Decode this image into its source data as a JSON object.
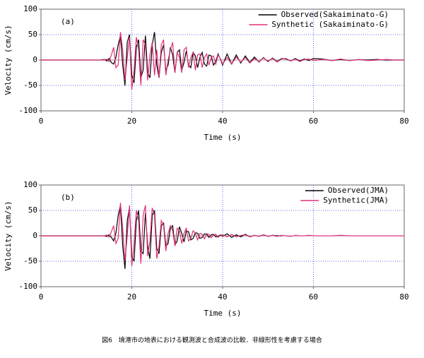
{
  "chart_data": [
    {
      "type": "line",
      "label": "(a)",
      "xlabel": "Time (s)",
      "ylabel": "Velocity (cm/s)",
      "xlim": [
        0,
        80
      ],
      "xticks": [
        0,
        20,
        40,
        60,
        80
      ],
      "ylim": [
        -100,
        100
      ],
      "yticks": [
        -100,
        -50,
        0,
        50,
        100
      ],
      "grid": true,
      "legend": "upper right",
      "x": [
        0,
        5,
        10,
        13,
        14,
        14.5,
        15,
        15.5,
        16,
        16.5,
        17,
        17.5,
        18,
        18.5,
        19,
        19.5,
        20,
        20.5,
        21,
        21.5,
        22,
        22.5,
        23,
        23.5,
        24,
        24.5,
        25,
        25.5,
        26,
        26.5,
        27,
        27.5,
        28,
        28.5,
        29,
        29.5,
        30,
        30.5,
        31,
        31.5,
        32,
        32.5,
        33,
        33.5,
        34,
        34.5,
        35,
        35.5,
        36,
        36.5,
        37,
        37.5,
        38,
        38.5,
        39,
        39.5,
        40,
        41,
        42,
        43,
        44,
        45,
        46,
        47,
        48,
        49,
        50,
        51,
        52,
        53,
        54,
        55,
        56,
        57,
        58,
        59,
        60,
        62,
        64,
        66,
        68,
        70,
        72,
        74,
        76,
        78,
        80
      ],
      "series": [
        {
          "name": "Observed(Sakaiminato-G)",
          "color": "#000000",
          "values": [
            0,
            0,
            0,
            0,
            1,
            -2,
            3,
            -5,
            -8,
            5,
            30,
            48,
            -10,
            -50,
            35,
            50,
            -30,
            -45,
            25,
            40,
            -35,
            -20,
            48,
            -25,
            -35,
            30,
            55,
            -10,
            -35,
            15,
            30,
            -20,
            -10,
            25,
            10,
            -25,
            15,
            20,
            -20,
            -5,
            18,
            -10,
            -15,
            15,
            8,
            -15,
            5,
            15,
            -8,
            -12,
            10,
            8,
            -10,
            -3,
            12,
            2,
            -10,
            12,
            -8,
            10,
            -6,
            8,
            -5,
            6,
            -4,
            5,
            -3,
            4,
            -3,
            3,
            2,
            -2,
            3,
            -2,
            2,
            -1,
            3,
            2,
            -1,
            1,
            -1,
            1,
            0,
            1,
            0,
            0,
            0
          ]
        },
        {
          "name": "Synthetic (Sakaiminato-G)",
          "color": "#e0307a",
          "values": [
            0,
            0,
            0,
            0,
            0,
            2,
            -3,
            10,
            25,
            -15,
            -10,
            55,
            20,
            -40,
            5,
            45,
            -58,
            -20,
            45,
            20,
            -50,
            40,
            30,
            -40,
            10,
            35,
            -30,
            20,
            -35,
            30,
            40,
            -30,
            0,
            20,
            35,
            -25,
            15,
            5,
            -25,
            20,
            25,
            -15,
            5,
            15,
            -20,
            10,
            12,
            -15,
            5,
            12,
            -10,
            5,
            8,
            -8,
            10,
            3,
            -8,
            5,
            -8,
            6,
            -4,
            5,
            -6,
            3,
            -3,
            4,
            -2,
            3,
            -4,
            2,
            3,
            -2,
            2,
            -3,
            1,
            2,
            -1,
            1,
            -1,
            2,
            -1,
            1,
            -1,
            0,
            1,
            0,
            0
          ]
        }
      ]
    },
    {
      "type": "line",
      "label": "(b)",
      "xlabel": "Time (s)",
      "ylabel": "Velocity (cm/s)",
      "xlim": [
        0,
        80
      ],
      "xticks": [
        0,
        20,
        40,
        60,
        80
      ],
      "ylim": [
        -100,
        100
      ],
      "yticks": [
        -100,
        -50,
        0,
        50,
        100
      ],
      "grid": true,
      "legend": "upper right",
      "x": [
        0,
        5,
        10,
        13,
        14,
        14.5,
        15,
        15.5,
        16,
        16.5,
        17,
        17.5,
        18,
        18.5,
        19,
        19.5,
        20,
        20.5,
        21,
        21.5,
        22,
        22.5,
        23,
        23.5,
        24,
        24.5,
        25,
        25.5,
        26,
        26.5,
        27,
        27.5,
        28,
        28.5,
        29,
        29.5,
        30,
        30.5,
        31,
        31.5,
        32,
        32.5,
        33,
        33.5,
        34,
        34.5,
        35,
        35.5,
        36,
        36.5,
        37,
        37.5,
        38,
        38.5,
        39,
        39.5,
        40,
        41,
        42,
        43,
        44,
        45,
        46,
        47,
        48,
        49,
        50,
        51,
        52,
        53,
        54,
        55,
        56,
        57,
        58,
        59,
        60,
        62,
        64,
        66,
        68,
        70,
        72,
        74,
        76,
        78,
        80
      ],
      "series": [
        {
          "name": "Observed(JMA)",
          "color": "#000000",
          "values": [
            0,
            0,
            0,
            0,
            0,
            -1,
            2,
            -3,
            -10,
            5,
            40,
            60,
            -20,
            -65,
            30,
            55,
            -40,
            -50,
            30,
            50,
            -30,
            -35,
            45,
            -20,
            -45,
            40,
            50,
            -25,
            -35,
            20,
            25,
            -20,
            -15,
            15,
            20,
            -18,
            -10,
            18,
            5,
            -12,
            10,
            8,
            -8,
            -5,
            6,
            5,
            -5,
            -3,
            4,
            3,
            -3,
            2,
            3,
            -2,
            -1,
            2,
            -1,
            4,
            -3,
            2,
            -2,
            3,
            -2,
            1,
            -1,
            2,
            -1,
            1,
            0,
            0,
            null,
            null,
            null,
            null,
            null,
            null,
            null,
            null,
            null,
            null,
            null,
            null,
            null,
            null,
            null,
            null,
            null
          ]
        },
        {
          "name": "Synthetic(JMA)",
          "color": "#e0307a",
          "values": [
            0,
            0,
            0,
            0,
            0,
            2,
            -3,
            8,
            20,
            -15,
            -5,
            65,
            15,
            -50,
            0,
            60,
            -60,
            -15,
            50,
            30,
            -55,
            40,
            60,
            -40,
            -10,
            55,
            40,
            -45,
            -20,
            30,
            20,
            -30,
            5,
            20,
            10,
            -20,
            15,
            10,
            -15,
            5,
            15,
            -10,
            -5,
            10,
            5,
            -8,
            5,
            3,
            -6,
            4,
            3,
            -4,
            2,
            3,
            -3,
            1,
            2,
            -2,
            3,
            -2,
            1,
            2,
            -2,
            1,
            -1,
            2,
            -1,
            1,
            -1,
            1,
            0,
            -1,
            1,
            0,
            0,
            1,
            0,
            0,
            0,
            1,
            0,
            0,
            0,
            0,
            0,
            0,
            0
          ]
        }
      ]
    }
  ],
  "caption": "図6　境港市の地表における観測波と合成波の比較．非線形性を考慮する場合"
}
